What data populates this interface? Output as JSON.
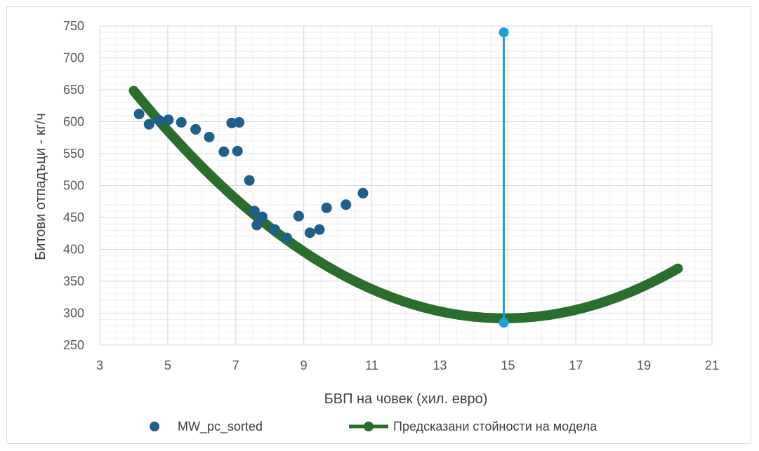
{
  "chart_data": {
    "type": "scatter",
    "xlabel": "БВП на човек (хил. евро)",
    "ylabel": "Битови отпадъци - кг/ч",
    "xlim": [
      3,
      21
    ],
    "ylim": [
      250,
      750
    ],
    "xticks": [
      3,
      5,
      7,
      9,
      11,
      13,
      15,
      17,
      19,
      21
    ],
    "yticks": [
      250,
      300,
      350,
      400,
      450,
      500,
      550,
      600,
      650,
      700,
      750
    ],
    "grid": true,
    "legend_position": "bottom",
    "series": [
      {
        "name": "MW_pc_sorted",
        "kind": "scatter",
        "color": "#1f5f8b",
        "points": [
          [
            4.16,
            612
          ],
          [
            4.45,
            596
          ],
          [
            4.75,
            602
          ],
          [
            5.02,
            603
          ],
          [
            5.4,
            599
          ],
          [
            5.82,
            588
          ],
          [
            6.22,
            576
          ],
          [
            6.65,
            553
          ],
          [
            6.88,
            598
          ],
          [
            7.05,
            554
          ],
          [
            7.1,
            599
          ],
          [
            7.4,
            508
          ],
          [
            7.55,
            460
          ],
          [
            7.62,
            438
          ],
          [
            7.78,
            451
          ],
          [
            8.15,
            431
          ],
          [
            8.5,
            418
          ],
          [
            8.85,
            452
          ],
          [
            9.18,
            426
          ],
          [
            9.46,
            431
          ],
          [
            9.67,
            465
          ],
          [
            10.24,
            470
          ],
          [
            10.74,
            488
          ]
        ]
      },
      {
        "name": "Предсказани стойности на модела",
        "kind": "line",
        "color": "#2a6e2e",
        "model": {
          "type": "quadratic",
          "vertex_x": 14.9,
          "vertex_y": 292,
          "a": 3.0
        },
        "x_start": 4.0,
        "x_end": 20.0
      },
      {
        "name": "",
        "kind": "vertical-segment",
        "color": "#1da1dc",
        "x": 14.88,
        "y_bottom": 285,
        "y_top": 740
      }
    ]
  }
}
